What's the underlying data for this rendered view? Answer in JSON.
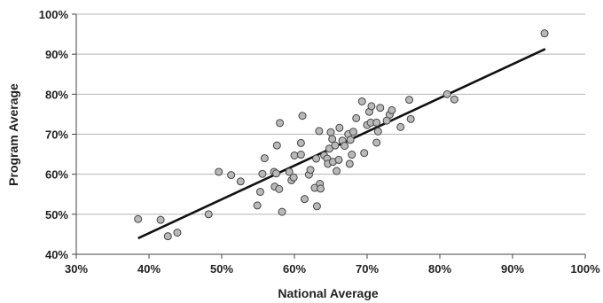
{
  "chart_data": {
    "type": "scatter",
    "title": "",
    "xlabel": "National Average",
    "ylabel": "Program Average",
    "xlim": [
      30,
      100
    ],
    "ylim": [
      40,
      100
    ],
    "x_ticks": [
      30,
      40,
      50,
      60,
      70,
      80,
      90,
      100
    ],
    "y_ticks": [
      40,
      50,
      60,
      70,
      80,
      90,
      100
    ],
    "x_tick_labels": [
      "30%",
      "40%",
      "50%",
      "60%",
      "70%",
      "80%",
      "90%",
      "100%"
    ],
    "y_tick_labels": [
      "40%",
      "50%",
      "60%",
      "70%",
      "80%",
      "90%",
      "100%"
    ],
    "grid": "horizontal",
    "legend": "none",
    "colors": {
      "marker_fill": "#b9b9b9",
      "marker_edge": "#444444",
      "trendline": "#111111",
      "grid": "#b5b5b5"
    },
    "trendline": {
      "x": [
        38.5,
        94.5
      ],
      "y": [
        44,
        91.3
      ]
    },
    "series": [
      {
        "points": [
          [
            38.5,
            48.8
          ],
          [
            41.6,
            48.6
          ],
          [
            42.6,
            44.5
          ],
          [
            43.9,
            45.4
          ],
          [
            48.2,
            50.0
          ],
          [
            49.6,
            60.6
          ],
          [
            51.3,
            59.8
          ],
          [
            52.6,
            58.2
          ],
          [
            54.9,
            52.2
          ],
          [
            55.3,
            55.6
          ],
          [
            55.6,
            60.1
          ],
          [
            55.9,
            64.0
          ],
          [
            57.2,
            60.6
          ],
          [
            57.3,
            56.9
          ],
          [
            57.5,
            60.2
          ],
          [
            57.6,
            67.2
          ],
          [
            57.9,
            56.3
          ],
          [
            58.0,
            72.8
          ],
          [
            58.3,
            50.6
          ],
          [
            59.3,
            60.6
          ],
          [
            59.6,
            58.5
          ],
          [
            59.9,
            59.2
          ],
          [
            60.0,
            64.7
          ],
          [
            60.9,
            67.8
          ],
          [
            60.9,
            64.9
          ],
          [
            61.1,
            74.6
          ],
          [
            61.4,
            53.8
          ],
          [
            62.0,
            59.9
          ],
          [
            62.2,
            61.1
          ],
          [
            62.8,
            56.6
          ],
          [
            63.0,
            63.9
          ],
          [
            63.1,
            52.0
          ],
          [
            63.4,
            70.8
          ],
          [
            63.5,
            57.6
          ],
          [
            63.6,
            56.4
          ],
          [
            64.1,
            64.7
          ],
          [
            64.5,
            63.9
          ],
          [
            64.6,
            62.6
          ],
          [
            64.8,
            66.4
          ],
          [
            65.0,
            70.5
          ],
          [
            65.2,
            68.8
          ],
          [
            65.3,
            63.1
          ],
          [
            65.6,
            67.2
          ],
          [
            65.8,
            60.8
          ],
          [
            66.1,
            63.6
          ],
          [
            66.2,
            71.6
          ],
          [
            66.6,
            68.4
          ],
          [
            66.9,
            67.1
          ],
          [
            67.4,
            70.0
          ],
          [
            67.6,
            62.6
          ],
          [
            67.7,
            68.6
          ],
          [
            67.9,
            64.9
          ],
          [
            68.1,
            70.6
          ],
          [
            68.5,
            74.0
          ],
          [
            69.3,
            78.2
          ],
          [
            69.6,
            65.3
          ],
          [
            70.0,
            72.3
          ],
          [
            70.3,
            75.6
          ],
          [
            70.5,
            72.9
          ],
          [
            70.6,
            77.0
          ],
          [
            71.3,
            67.9
          ],
          [
            71.3,
            72.9
          ],
          [
            71.5,
            70.7
          ],
          [
            71.8,
            76.6
          ],
          [
            72.7,
            73.4
          ],
          [
            73.1,
            74.9
          ],
          [
            73.4,
            76.0
          ],
          [
            74.6,
            71.8
          ],
          [
            75.8,
            78.6
          ],
          [
            76.0,
            73.8
          ],
          [
            81.0,
            80.0
          ],
          [
            82.0,
            78.7
          ],
          [
            94.4,
            95.2
          ]
        ]
      }
    ]
  }
}
